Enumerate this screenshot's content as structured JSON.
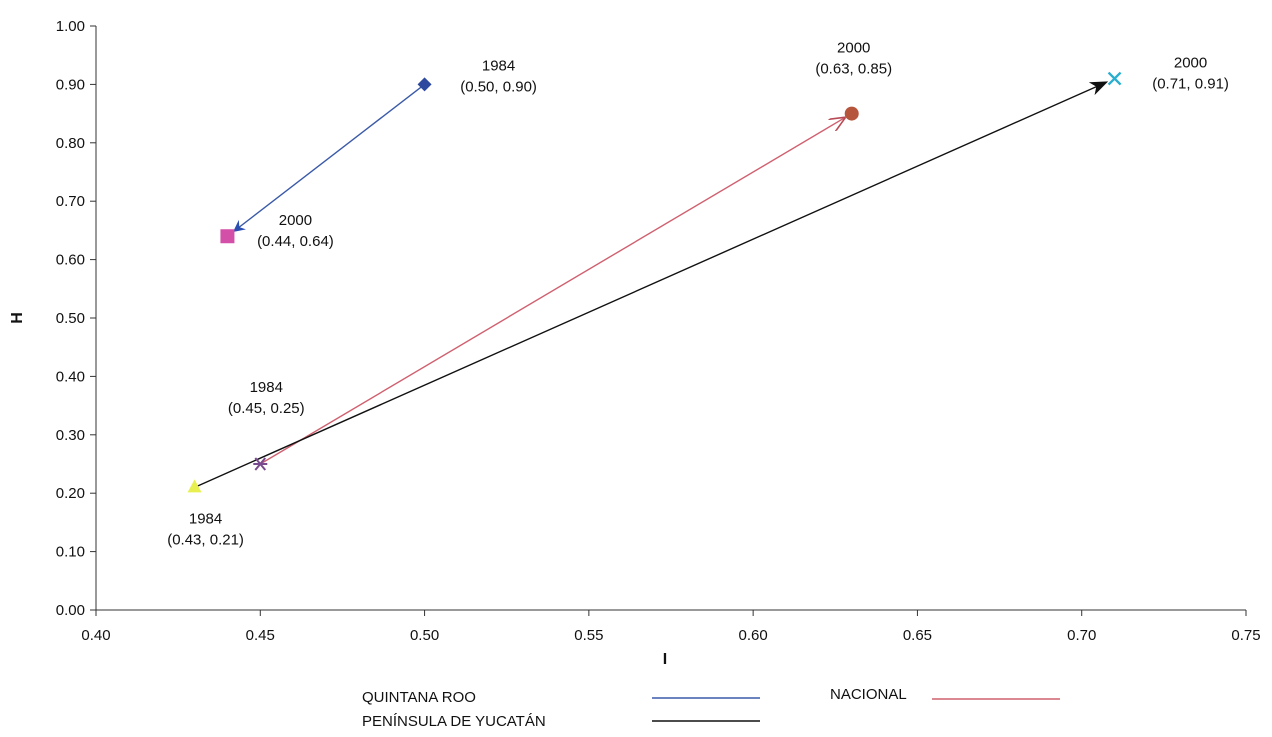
{
  "chart_data": {
    "type": "line",
    "xlabel": "I",
    "ylabel": "H",
    "xlim": [
      0.4,
      0.75
    ],
    "ylim": [
      0.0,
      1.0
    ],
    "x_ticks": [
      "0.40",
      "0.45",
      "0.50",
      "0.55",
      "0.60",
      "0.65",
      "0.70",
      "0.75"
    ],
    "y_ticks": [
      "0.00",
      "0.10",
      "0.20",
      "0.30",
      "0.40",
      "0.50",
      "0.60",
      "0.70",
      "0.80",
      "0.90",
      "1.00"
    ],
    "grid": false,
    "legend_position": "bottom",
    "series": [
      {
        "name": "QUINTANA ROO",
        "color": "#3a5aa8",
        "from": {
          "x": 0.5,
          "y": 0.9,
          "year": "1984",
          "label": "(0.50, 0.90)",
          "marker": "diamond",
          "marker_color": "#2e4a9e"
        },
        "to": {
          "x": 0.44,
          "y": 0.64,
          "year": "2000",
          "label": "(0.44, 0.64)",
          "marker": "square",
          "marker_color": "#d44fa8"
        }
      },
      {
        "name": "NACIONAL",
        "color": "#d0606f",
        "from": {
          "x": 0.45,
          "y": 0.25,
          "year": "1984",
          "label": "(0.45, 0.25)",
          "marker": "star",
          "marker_color": "#7a4a8e"
        },
        "to": {
          "x": 0.63,
          "y": 0.85,
          "year": "2000",
          "label": "(0.63, 0.85)",
          "marker": "circle",
          "marker_color": "#b5553c"
        }
      },
      {
        "name": "PENÍNSULA DE YUCATÁN",
        "color": "#111111",
        "from": {
          "x": 0.43,
          "y": 0.21,
          "year": "1984",
          "label": "(0.43, 0.21)",
          "marker": "triangle",
          "marker_color": "#e8f050"
        },
        "to": {
          "x": 0.71,
          "y": 0.91,
          "year": "2000",
          "label": "(0.71, 0.91)",
          "marker": "x",
          "marker_color": "#2aaed0"
        }
      }
    ]
  }
}
